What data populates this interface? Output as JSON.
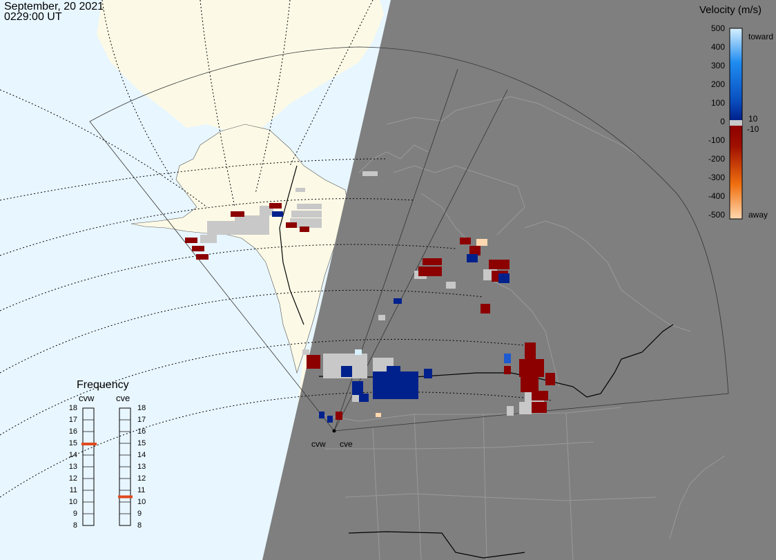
{
  "header": {
    "date": "September, 20 2021",
    "time": "0229:00 UT"
  },
  "velocity_scale": {
    "title": "Velocity (m/s)",
    "ticks": [
      "500",
      "400",
      "300",
      "200",
      "100",
      "0",
      "-100",
      "-200",
      "-300",
      "-400",
      "-500"
    ],
    "inner_labels": [
      "10",
      "-10"
    ],
    "toward_label": "toward",
    "away_label": "away",
    "colors": {
      "toward_light": "#d8f0ff",
      "toward_mid": "#1e8cf0",
      "toward_dark": "#00218c",
      "away_dark": "#8c0000",
      "away_mid": "#f07010",
      "away_light": "#ffd8b0",
      "ground_scatter": "#c8c8c8"
    }
  },
  "frequency": {
    "title": "Frequency",
    "radars": [
      {
        "name": "cvw",
        "selected_mhz": 15
      },
      {
        "name": "cve",
        "selected_mhz": 10.5
      }
    ],
    "scale_labels": [
      "18",
      "17",
      "16",
      "15",
      "14",
      "13",
      "12",
      "11",
      "10",
      "9",
      "8"
    ],
    "indicator_color": "#e04a1e"
  },
  "radar_sites": [
    {
      "name": "cvw"
    },
    {
      "name": "cve"
    }
  ],
  "map": {
    "ocean_color": "#e8f6ff",
    "land_day_color": "#fcfae6",
    "night_color": "#7f7f7f",
    "night_border_color": "#9a9a9a",
    "grid_line_color": "#000000"
  }
}
